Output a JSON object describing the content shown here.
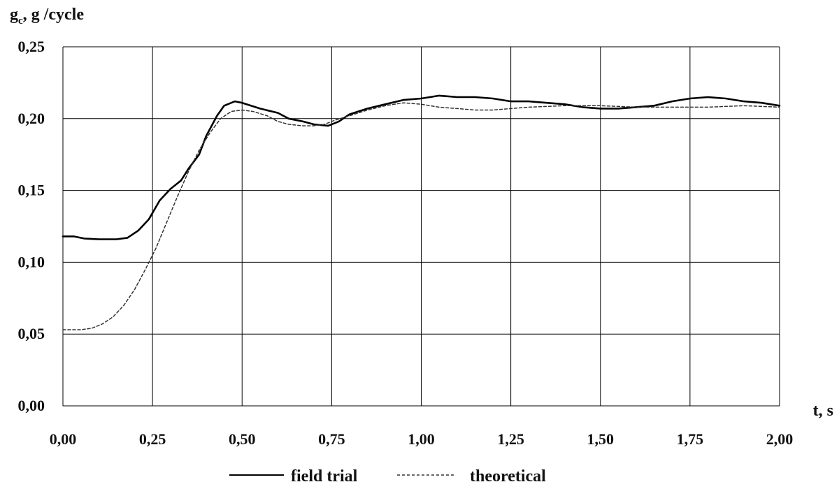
{
  "chart_data": {
    "type": "line",
    "ylabel_main": "g",
    "ylabel_sub": "c",
    "ylabel_rest": ", g /cycle",
    "xlabel": "t, s",
    "xlim": [
      0,
      2
    ],
    "ylim": [
      0,
      0.25
    ],
    "x_ticks": [
      {
        "value": 0.0,
        "label": "0,00"
      },
      {
        "value": 0.25,
        "label": "0,25"
      },
      {
        "value": 0.5,
        "label": "0,50"
      },
      {
        "value": 0.75,
        "label": "0,75"
      },
      {
        "value": 1.0,
        "label": "1,00"
      },
      {
        "value": 1.25,
        "label": "1,25"
      },
      {
        "value": 1.5,
        "label": "1,50"
      },
      {
        "value": 1.75,
        "label": "1,75"
      },
      {
        "value": 2.0,
        "label": "2,00"
      }
    ],
    "y_ticks": [
      {
        "value": 0.0,
        "label": "0,00"
      },
      {
        "value": 0.05,
        "label": "0,05"
      },
      {
        "value": 0.1,
        "label": "0,10"
      },
      {
        "value": 0.15,
        "label": "0,15"
      },
      {
        "value": 0.2,
        "label": "0,20"
      },
      {
        "value": 0.25,
        "label": "0,25"
      }
    ],
    "grid": true,
    "legend_position": "bottom",
    "series": [
      {
        "name": "field trial",
        "style": "solid",
        "color": "#000000",
        "points": [
          [
            0.0,
            0.118
          ],
          [
            0.03,
            0.118
          ],
          [
            0.06,
            0.1165
          ],
          [
            0.1,
            0.116
          ],
          [
            0.15,
            0.116
          ],
          [
            0.18,
            0.117
          ],
          [
            0.21,
            0.122
          ],
          [
            0.24,
            0.13
          ],
          [
            0.27,
            0.143
          ],
          [
            0.3,
            0.151
          ],
          [
            0.33,
            0.157
          ],
          [
            0.35,
            0.165
          ],
          [
            0.38,
            0.175
          ],
          [
            0.4,
            0.188
          ],
          [
            0.43,
            0.202
          ],
          [
            0.45,
            0.209
          ],
          [
            0.48,
            0.212
          ],
          [
            0.5,
            0.211
          ],
          [
            0.55,
            0.207
          ],
          [
            0.6,
            0.204
          ],
          [
            0.63,
            0.2
          ],
          [
            0.67,
            0.198
          ],
          [
            0.7,
            0.196
          ],
          [
            0.74,
            0.195
          ],
          [
            0.77,
            0.198
          ],
          [
            0.8,
            0.203
          ],
          [
            0.85,
            0.207
          ],
          [
            0.9,
            0.21
          ],
          [
            0.95,
            0.213
          ],
          [
            1.0,
            0.214
          ],
          [
            1.05,
            0.216
          ],
          [
            1.1,
            0.215
          ],
          [
            1.15,
            0.215
          ],
          [
            1.2,
            0.214
          ],
          [
            1.25,
            0.212
          ],
          [
            1.3,
            0.212
          ],
          [
            1.35,
            0.211
          ],
          [
            1.4,
            0.21
          ],
          [
            1.45,
            0.208
          ],
          [
            1.5,
            0.207
          ],
          [
            1.55,
            0.207
          ],
          [
            1.6,
            0.208
          ],
          [
            1.65,
            0.209
          ],
          [
            1.7,
            0.212
          ],
          [
            1.75,
            0.214
          ],
          [
            1.8,
            0.215
          ],
          [
            1.85,
            0.214
          ],
          [
            1.9,
            0.212
          ],
          [
            1.95,
            0.211
          ],
          [
            2.0,
            0.209
          ]
        ]
      },
      {
        "name": "theoretical",
        "style": "dashed",
        "color": "#333333",
        "points": [
          [
            0.0,
            0.053
          ],
          [
            0.05,
            0.053
          ],
          [
            0.08,
            0.054
          ],
          [
            0.11,
            0.057
          ],
          [
            0.14,
            0.062
          ],
          [
            0.17,
            0.07
          ],
          [
            0.2,
            0.081
          ],
          [
            0.23,
            0.095
          ],
          [
            0.26,
            0.11
          ],
          [
            0.29,
            0.128
          ],
          [
            0.32,
            0.146
          ],
          [
            0.35,
            0.163
          ],
          [
            0.38,
            0.178
          ],
          [
            0.41,
            0.19
          ],
          [
            0.44,
            0.2
          ],
          [
            0.47,
            0.205
          ],
          [
            0.5,
            0.206
          ],
          [
            0.53,
            0.205
          ],
          [
            0.57,
            0.202
          ],
          [
            0.6,
            0.198
          ],
          [
            0.63,
            0.196
          ],
          [
            0.67,
            0.195
          ],
          [
            0.7,
            0.195
          ],
          [
            0.73,
            0.196
          ],
          [
            0.76,
            0.199
          ],
          [
            0.8,
            0.202
          ],
          [
            0.85,
            0.206
          ],
          [
            0.9,
            0.209
          ],
          [
            0.95,
            0.211
          ],
          [
            1.0,
            0.21
          ],
          [
            1.05,
            0.208
          ],
          [
            1.1,
            0.207
          ],
          [
            1.15,
            0.206
          ],
          [
            1.2,
            0.206
          ],
          [
            1.25,
            0.207
          ],
          [
            1.3,
            0.208
          ],
          [
            1.4,
            0.209
          ],
          [
            1.5,
            0.209
          ],
          [
            1.6,
            0.208
          ],
          [
            1.7,
            0.208
          ],
          [
            1.8,
            0.208
          ],
          [
            1.9,
            0.209
          ],
          [
            2.0,
            0.208
          ]
        ]
      }
    ]
  }
}
